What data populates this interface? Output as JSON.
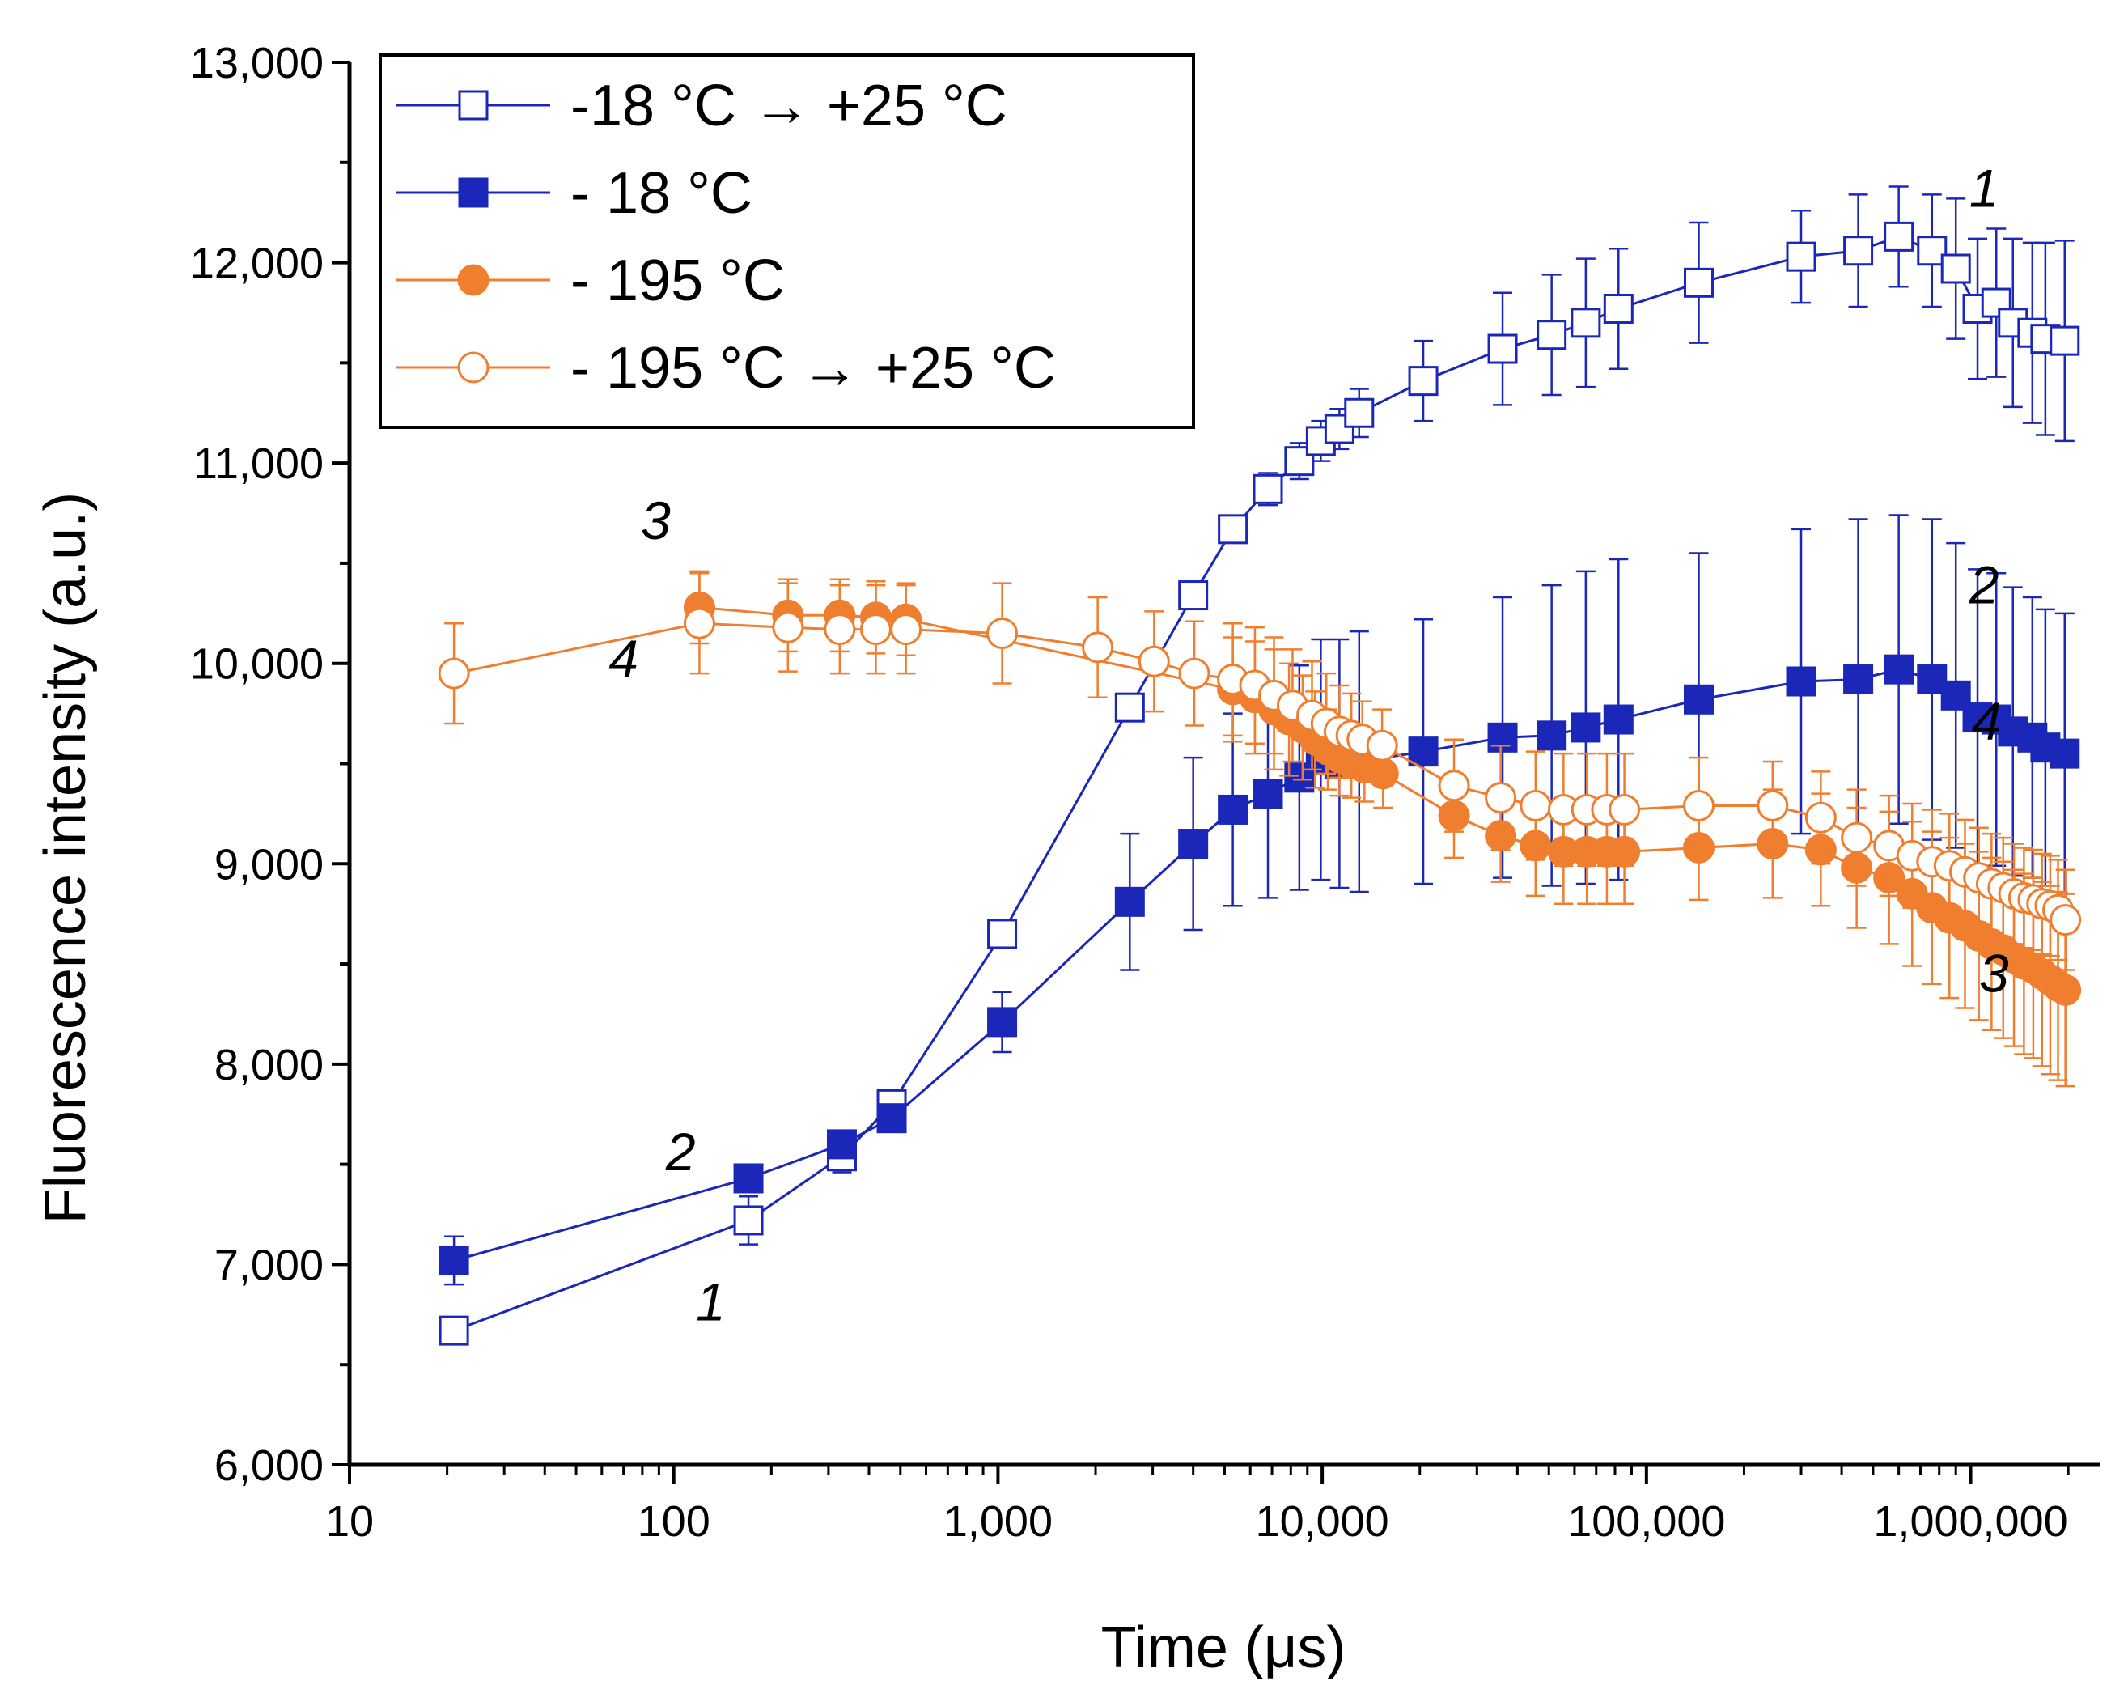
{
  "chart_data": {
    "type": "line",
    "xscale": "log",
    "xlabel": "Time (μs)",
    "ylabel": "Fluorescence intensity (a.u.)",
    "xlim": [
      10,
      2500000
    ],
    "ylim": [
      6000,
      13000
    ],
    "xticks": [
      {
        "value": 10,
        "label": "10"
      },
      {
        "value": 100,
        "label": "100"
      },
      {
        "value": 1000,
        "label": "1,000"
      },
      {
        "value": 10000,
        "label": "10,000"
      },
      {
        "value": 100000,
        "label": "100,000"
      },
      {
        "value": 1000000,
        "label": "1,000,000"
      }
    ],
    "yticks": [
      {
        "value": 6000,
        "label": "6,000"
      },
      {
        "value": 7000,
        "label": "7,000"
      },
      {
        "value": 8000,
        "label": "8,000"
      },
      {
        "value": 9000,
        "label": "9,000"
      },
      {
        "value": 10000,
        "label": "10,000"
      },
      {
        "value": 11000,
        "label": "11,000"
      },
      {
        "value": 12000,
        "label": "12,000"
      },
      {
        "value": 13000,
        "label": "13,000"
      }
    ],
    "legend_position": "top-left",
    "series": [
      {
        "name": "-18 °C → +25 °C",
        "label": "1",
        "color": "#1a27b8",
        "marker": "square",
        "filled": false,
        "x": [
          21,
          170,
          330,
          470,
          1030,
          2550,
          4000,
          5300,
          6800,
          8500,
          9900,
          11300,
          13000,
          20500,
          36000,
          51000,
          65000,
          82000,
          145000,
          300000,
          450000,
          600000,
          760000,
          900000,
          1050000,
          1200000,
          1350000,
          1550000,
          1700000,
          1950000
        ],
        "y": [
          6670,
          7220,
          7540,
          7800,
          8650,
          9780,
          10340,
          10670,
          10870,
          11010,
          11110,
          11170,
          11250,
          11410,
          11570,
          11640,
          11700,
          11770,
          11900,
          12030,
          12060,
          12130,
          12060,
          11970,
          11770,
          11800,
          11700,
          11650,
          11620,
          11610
        ],
        "err": [
          20,
          120,
          80,
          60,
          40,
          40,
          50,
          60,
          80,
          90,
          100,
          100,
          120,
          200,
          280,
          300,
          320,
          300,
          300,
          230,
          280,
          250,
          280,
          350,
          350,
          370,
          420,
          450,
          480,
          500
        ]
      },
      {
        "name": "- 18 °C",
        "label": "2",
        "color": "#1a27b8",
        "marker": "square",
        "filled": true,
        "x": [
          21,
          170,
          330,
          470,
          1030,
          2550,
          4000,
          5300,
          6800,
          8500,
          9900,
          11300,
          13000,
          20500,
          36000,
          51000,
          65000,
          82000,
          145000,
          300000,
          450000,
          600000,
          760000,
          900000,
          1050000,
          1200000,
          1350000,
          1550000,
          1700000,
          1950000
        ],
        "y": [
          7020,
          7430,
          7600,
          7730,
          8210,
          8810,
          9100,
          9270,
          9350,
          9430,
          9520,
          9500,
          9510,
          9560,
          9630,
          9640,
          9680,
          9720,
          9820,
          9910,
          9920,
          9970,
          9920,
          9840,
          9730,
          9720,
          9660,
          9630,
          9580,
          9550
        ],
        "err": [
          120,
          60,
          50,
          50,
          150,
          340,
          430,
          480,
          520,
          560,
          600,
          620,
          650,
          660,
          700,
          750,
          780,
          800,
          730,
          760,
          800,
          770,
          800,
          760,
          740,
          730,
          720,
          700,
          690,
          700
        ]
      },
      {
        "name": "- 195 °C",
        "label": "3",
        "color": "#ef7e2e",
        "marker": "circle",
        "filled": true,
        "x": [
          120,
          225,
          325,
          420,
          520,
          5300,
          6200,
          7100,
          7900,
          8700,
          9500,
          10400,
          11300,
          12300,
          13500,
          15400,
          25500,
          35500,
          45500,
          55500,
          65500,
          75500,
          85500,
          145000,
          245000,
          345000,
          445000,
          560000,
          660000,
          760000,
          860000,
          960000,
          1060000,
          1160000,
          1260000,
          1360000,
          1460000,
          1560000,
          1660000,
          1760000,
          1860000,
          1960000
        ],
        "y": [
          10280,
          10240,
          10240,
          10230,
          10220,
          9870,
          9830,
          9770,
          9720,
          9680,
          9620,
          9570,
          9530,
          9500,
          9480,
          9450,
          9240,
          9140,
          9090,
          9060,
          9060,
          9060,
          9060,
          9080,
          9100,
          9070,
          8980,
          8930,
          8850,
          8780,
          8730,
          8690,
          8640,
          8600,
          8570,
          8530,
          8500,
          8480,
          8450,
          8420,
          8390,
          8370
        ],
        "err": [
          180,
          180,
          180,
          180,
          180,
          260,
          280,
          300,
          280,
          260,
          240,
          200,
          190,
          170,
          170,
          170,
          210,
          230,
          250,
          260,
          260,
          260,
          260,
          260,
          270,
          280,
          300,
          330,
          360,
          380,
          400,
          410,
          420,
          430,
          440,
          440,
          450,
          450,
          460,
          470,
          470,
          480
        ]
      },
      {
        "name": "- 195 °C → +25 °C",
        "label": "4",
        "color": "#ef7e2e",
        "marker": "circle",
        "filled": false,
        "x": [
          21,
          120,
          225,
          325,
          420,
          520,
          1030,
          2030,
          3030,
          4030,
          5300,
          6200,
          7100,
          8100,
          9300,
          10300,
          11300,
          12300,
          13300,
          15300,
          25500,
          35500,
          45500,
          55500,
          65500,
          75500,
          85500,
          145000,
          245000,
          345000,
          445000,
          560000,
          660000,
          760000,
          860000,
          960000,
          1060000,
          1160000,
          1260000,
          1360000,
          1460000,
          1560000,
          1660000,
          1760000,
          1860000,
          1960000
        ],
        "y": [
          9950,
          10200,
          10180,
          10170,
          10170,
          10170,
          10150,
          10080,
          10010,
          9950,
          9920,
          9890,
          9840,
          9790,
          9740,
          9700,
          9660,
          9640,
          9620,
          9590,
          9390,
          9330,
          9290,
          9270,
          9270,
          9270,
          9270,
          9290,
          9290,
          9230,
          9130,
          9090,
          9040,
          9010,
          8990,
          8960,
          8930,
          8900,
          8880,
          8850,
          8830,
          8820,
          8800,
          8790,
          8770,
          8720
        ],
        "err": [
          250,
          250,
          220,
          220,
          220,
          220,
          250,
          250,
          250,
          260,
          280,
          290,
          290,
          280,
          270,
          250,
          230,
          210,
          190,
          180,
          230,
          260,
          270,
          280,
          280,
          280,
          280,
          240,
          220,
          230,
          240,
          250,
          260,
          260,
          260,
          260,
          250,
          250,
          250,
          250,
          250,
          250,
          250,
          250,
          250,
          250
        ]
      }
    ],
    "curve_labels": [
      {
        "text": "1",
        "x": 1100000,
        "y": 12280
      },
      {
        "text": "1",
        "x": 130,
        "y": 6720
      },
      {
        "text": "2",
        "x": 1100000,
        "y": 10300
      },
      {
        "text": "2",
        "x": 105,
        "y": 7470
      },
      {
        "text": "3",
        "x": 88,
        "y": 10620
      },
      {
        "text": "3",
        "x": 1180000,
        "y": 8360
      },
      {
        "text": "4",
        "x": 70,
        "y": 9930
      },
      {
        "text": "4",
        "x": 1120000,
        "y": 9620
      }
    ]
  }
}
